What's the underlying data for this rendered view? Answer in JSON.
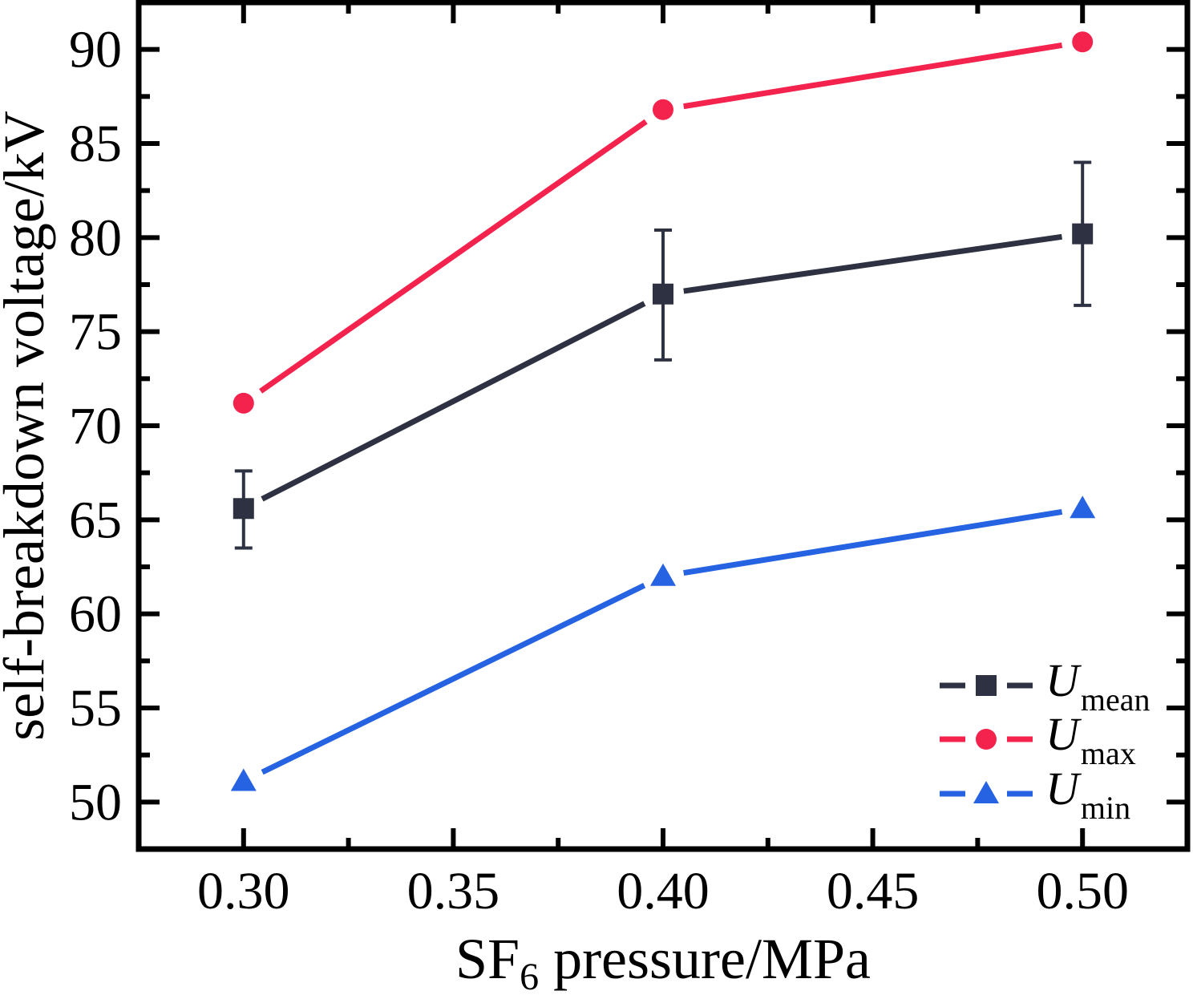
{
  "figure": {
    "kind": "scientific-line-chart",
    "background": "#ffffff",
    "axis_color": "#000000"
  },
  "chart_data": {
    "type": "line",
    "title": "",
    "xlabel": {
      "base": "SF",
      "subscript": "6",
      "rest": " pressure/MPa"
    },
    "ylabel": "self-breakdown voltage/kV",
    "x": [
      0.3,
      0.4,
      0.5
    ],
    "xlim": [
      0.275,
      0.525
    ],
    "ylim": [
      47.5,
      92.5
    ],
    "x_major_ticks": [
      0.3,
      0.35,
      0.4,
      0.45,
      0.5
    ],
    "x_tick_labels": [
      "0.30",
      "0.35",
      "0.40",
      "0.45",
      "0.50"
    ],
    "x_minor_ticks": [
      0.325,
      0.375,
      0.425,
      0.475
    ],
    "y_major_ticks": [
      50,
      55,
      60,
      65,
      70,
      75,
      80,
      85,
      90
    ],
    "y_tick_labels": [
      "50",
      "55",
      "60",
      "65",
      "70",
      "75",
      "80",
      "85",
      "90"
    ],
    "y_minor_ticks": [
      52.5,
      57.5,
      62.5,
      67.5,
      72.5,
      77.5,
      82.5,
      87.5
    ],
    "grid": false,
    "legend_position": "bottom-right",
    "series": [
      {
        "key": "umean",
        "label_base": "U",
        "label_sub": "mean",
        "marker": "square",
        "color": "#2e3142",
        "values": [
          65.6,
          77.0,
          80.2
        ],
        "error_upper": [
          67.6,
          80.4,
          84.0
        ],
        "error_lower": [
          63.5,
          73.5,
          76.4
        ]
      },
      {
        "key": "umax",
        "label_base": "U",
        "label_sub": "max",
        "marker": "circle",
        "color": "#f4234d",
        "values": [
          71.2,
          86.8,
          90.4
        ]
      },
      {
        "key": "umin",
        "label_base": "U",
        "label_sub": "min",
        "marker": "triangle",
        "color": "#2563e3",
        "values": [
          51.1,
          62.0,
          65.6
        ]
      }
    ]
  }
}
